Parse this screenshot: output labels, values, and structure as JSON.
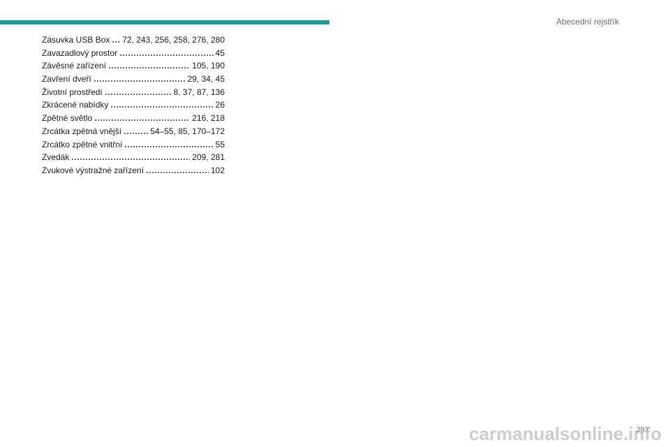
{
  "header": {
    "title": "Abecední rejstřík"
  },
  "entries": [
    {
      "term": "Zásuvka USB Box",
      "pages": "72, 243, 256, 258, 276, 280"
    },
    {
      "term": "Zavazadlový prostor",
      "pages": "45"
    },
    {
      "term": "Závěsné zařízení",
      "pages": "105, 190"
    },
    {
      "term": "Zavření dveří",
      "pages": "29, 34, 45"
    },
    {
      "term": "Životní prostředí",
      "pages": "8, 37, 87, 136"
    },
    {
      "term": "Zkrácené nabídky",
      "pages": "26"
    },
    {
      "term": "Zpětné světlo",
      "pages": "216, 218"
    },
    {
      "term": "Zrcátka zpětná vnější",
      "pages": "54–55, 85, 170–172"
    },
    {
      "term": "Zrcátko zpětné vnitřní",
      "pages": "55"
    },
    {
      "term": "Zvedák",
      "pages": "209, 281"
    },
    {
      "term": "Zvukové výstražné zařízení",
      "pages": "102"
    }
  ],
  "page_number": "297",
  "watermark": "carmanualsonline.info"
}
